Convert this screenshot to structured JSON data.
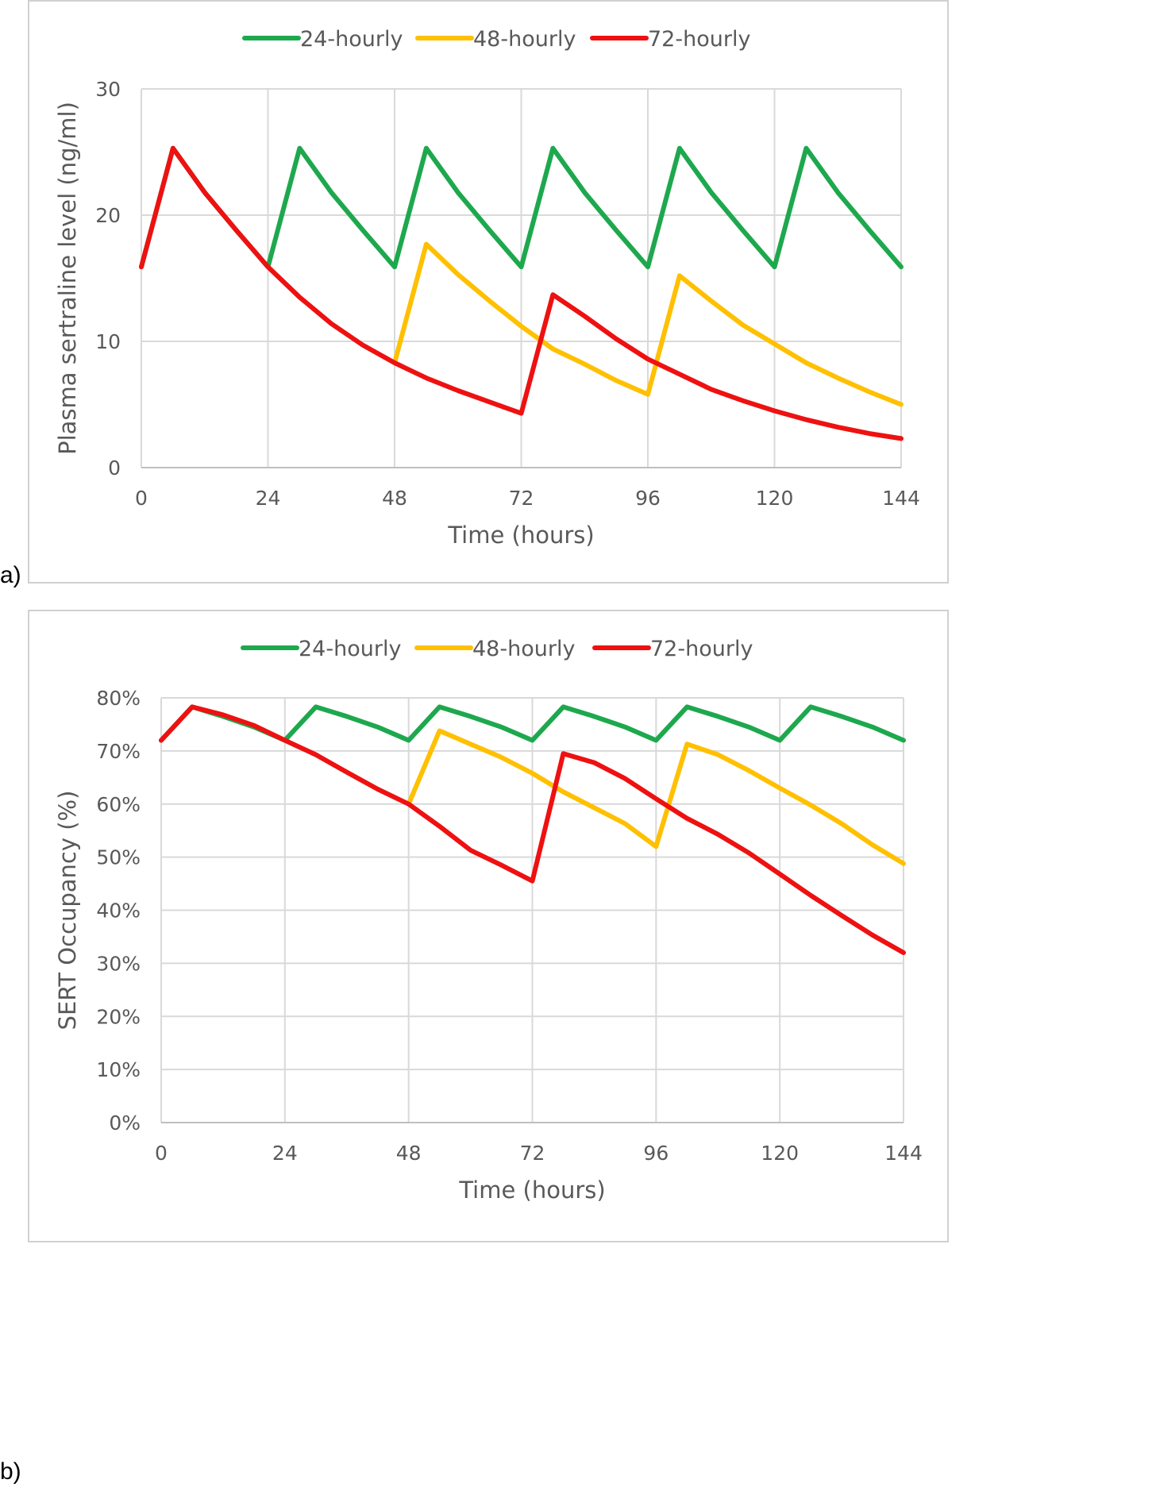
{
  "chart_data": [
    {
      "panel_label": "a)",
      "type": "line",
      "xlabel": "Time (hours)",
      "ylabel": "Plasma sertraline level (ng/ml)",
      "xlim": [
        0,
        144
      ],
      "ylim": [
        0,
        30
      ],
      "xticks": [
        0,
        24,
        48,
        72,
        96,
        120,
        144
      ],
      "yticks": [
        0,
        10,
        20,
        30
      ],
      "ytick_labels": [
        "0",
        "10",
        "20",
        "30"
      ],
      "grid": true,
      "legend": "top",
      "series": [
        {
          "name": "24-hourly",
          "color": "#1ea84e",
          "x": [
            0,
            6,
            12,
            18,
            24,
            30,
            36,
            42,
            48,
            54,
            60,
            66,
            72,
            78,
            84,
            90,
            96,
            102,
            108,
            114,
            120,
            126,
            132,
            138,
            144
          ],
          "values": [
            15.9,
            25.3,
            21.8,
            18.8,
            15.9,
            25.3,
            21.8,
            18.8,
            15.9,
            25.3,
            21.8,
            18.8,
            15.9,
            25.3,
            21.8,
            18.8,
            15.9,
            25.3,
            21.8,
            18.8,
            15.9,
            25.3,
            21.8,
            18.8,
            15.9
          ]
        },
        {
          "name": "48-hourly",
          "color": "#ffc000",
          "x": [
            48,
            54,
            60,
            66,
            72,
            78,
            84,
            90,
            96,
            102,
            108,
            114,
            120,
            126,
            132,
            138,
            144
          ],
          "values": [
            8.3,
            17.7,
            15.3,
            13.2,
            11.2,
            9.4,
            8.2,
            6.9,
            5.8,
            15.2,
            13.2,
            11.3,
            9.8,
            8.3,
            7.1,
            6.0,
            5.0
          ]
        },
        {
          "name": "72-hourly",
          "color": "#ee1111",
          "x": [
            0,
            6,
            12,
            18,
            24,
            30,
            36,
            42,
            48,
            54,
            60,
            66,
            72,
            78,
            84,
            90,
            96,
            102,
            108,
            114,
            120,
            126,
            132,
            138,
            144
          ],
          "values": [
            15.9,
            25.3,
            21.8,
            18.8,
            15.9,
            13.5,
            11.4,
            9.7,
            8.3,
            7.1,
            6.1,
            5.2,
            4.3,
            13.7,
            12.0,
            10.2,
            8.6,
            7.4,
            6.2,
            5.3,
            4.5,
            3.8,
            3.2,
            2.7,
            2.3
          ]
        }
      ]
    },
    {
      "panel_label": "b)",
      "type": "line",
      "xlabel": "Time (hours)",
      "ylabel": "SERT Occupancy (%)",
      "xlim": [
        0,
        144
      ],
      "ylim": [
        0,
        80
      ],
      "xticks": [
        0,
        24,
        48,
        72,
        96,
        120,
        144
      ],
      "yticks": [
        0,
        10,
        20,
        30,
        40,
        50,
        60,
        70,
        80
      ],
      "ytick_labels": [
        "0%",
        "10%",
        "20%",
        "30%",
        "40%",
        "50%",
        "60%",
        "70%",
        "80%"
      ],
      "grid": true,
      "legend": "top",
      "series": [
        {
          "name": "24-hourly",
          "color": "#1ea84e",
          "x": [
            0,
            6,
            12,
            18,
            24,
            30,
            36,
            42,
            48,
            54,
            60,
            66,
            72,
            78,
            84,
            90,
            96,
            102,
            108,
            114,
            120,
            126,
            132,
            138,
            144
          ],
          "values": [
            72,
            78.3,
            76.5,
            74.5,
            72,
            78.3,
            76.5,
            74.5,
            72,
            78.3,
            76.5,
            74.5,
            72,
            78.3,
            76.5,
            74.5,
            72,
            78.3,
            76.5,
            74.5,
            72,
            78.3,
            76.5,
            74.5,
            72
          ]
        },
        {
          "name": "48-hourly",
          "color": "#ffc000",
          "x": [
            48,
            54,
            60,
            66,
            72,
            78,
            84,
            90,
            96,
            102,
            108,
            114,
            120,
            126,
            132,
            138,
            144
          ],
          "values": [
            60,
            73.8,
            71.3,
            68.8,
            65.8,
            62.3,
            59.3,
            56.3,
            52,
            71.3,
            69.3,
            66.3,
            63,
            59.8,
            56.3,
            52.3,
            48.8
          ]
        },
        {
          "name": "72-hourly",
          "color": "#ee1111",
          "x": [
            0,
            6,
            12,
            18,
            24,
            30,
            36,
            42,
            48,
            54,
            60,
            66,
            72,
            78,
            84,
            90,
            96,
            102,
            108,
            114,
            120,
            126,
            132,
            138,
            144
          ],
          "values": [
            72,
            78.3,
            76.8,
            74.8,
            72,
            69.3,
            66,
            62.8,
            60,
            55.8,
            51.3,
            48.5,
            45.5,
            69.5,
            67.8,
            64.8,
            61,
            57.3,
            54.3,
            50.8,
            46.8,
            42.8,
            39,
            35.3,
            32
          ]
        }
      ]
    }
  ]
}
